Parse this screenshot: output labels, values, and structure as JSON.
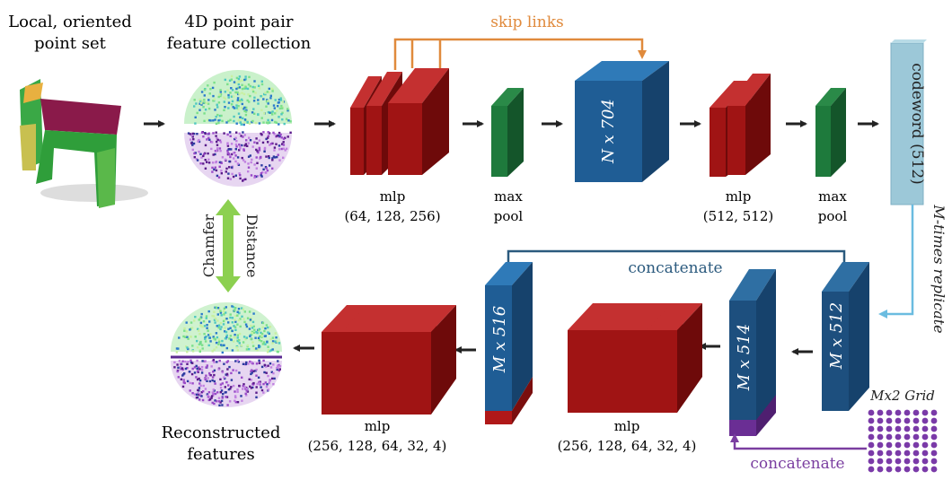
{
  "labels": {
    "input_title_1": "Local, oriented",
    "input_title_2": "point set",
    "ppf_title_1": "4D point pair",
    "ppf_title_2": "feature collection",
    "skip_links": "skip links",
    "n704": "N x 704",
    "codeword": "codeword (512)",
    "mlp1_name": "mlp",
    "mlp1_dims": "(64, 128, 256)",
    "maxpool1_a": "max",
    "maxpool1_b": "pool",
    "mlp2_name": "mlp",
    "mlp2_dims": "(512, 512)",
    "maxpool2_a": "max",
    "maxpool2_b": "pool",
    "replicate": "M-times replicate",
    "concat_top": "concatenate",
    "concat_bottom": "concatenate",
    "m516": "M x 516",
    "m514": "M x 514",
    "m512": "M x 512",
    "grid": "Mx2 Grid",
    "chamfer": "Chamfer",
    "distance": "Distance",
    "recon_1": "Reconstructed",
    "recon_2": "features",
    "mlp3_name": "mlp",
    "mlp3_dims": "(256, 128, 64, 32, 4)",
    "mlp4_name": "mlp",
    "mlp4_dims": "(256, 128, 64, 32, 4)"
  },
  "colors": {
    "red_front": "#a01414",
    "red_side": "#6e0a0a",
    "red_top": "#c43030",
    "green_front": "#1e7a3c",
    "green_side": "#14552a",
    "blue_front": "#1f5d95",
    "blue_side": "#16426c",
    "blue_top": "#2f7ab8",
    "dark_blue_front": "#1d4f7e",
    "skip_orange": "#e08a3c",
    "concat_blue": "#2b5a7e",
    "concat_purple": "#7a3ea0",
    "replicate_blue": "#6bbce0",
    "chamfer_green": "#8cd050",
    "codeword_fill": "#9cc8d8",
    "grid_dot": "#7a3aa8"
  }
}
